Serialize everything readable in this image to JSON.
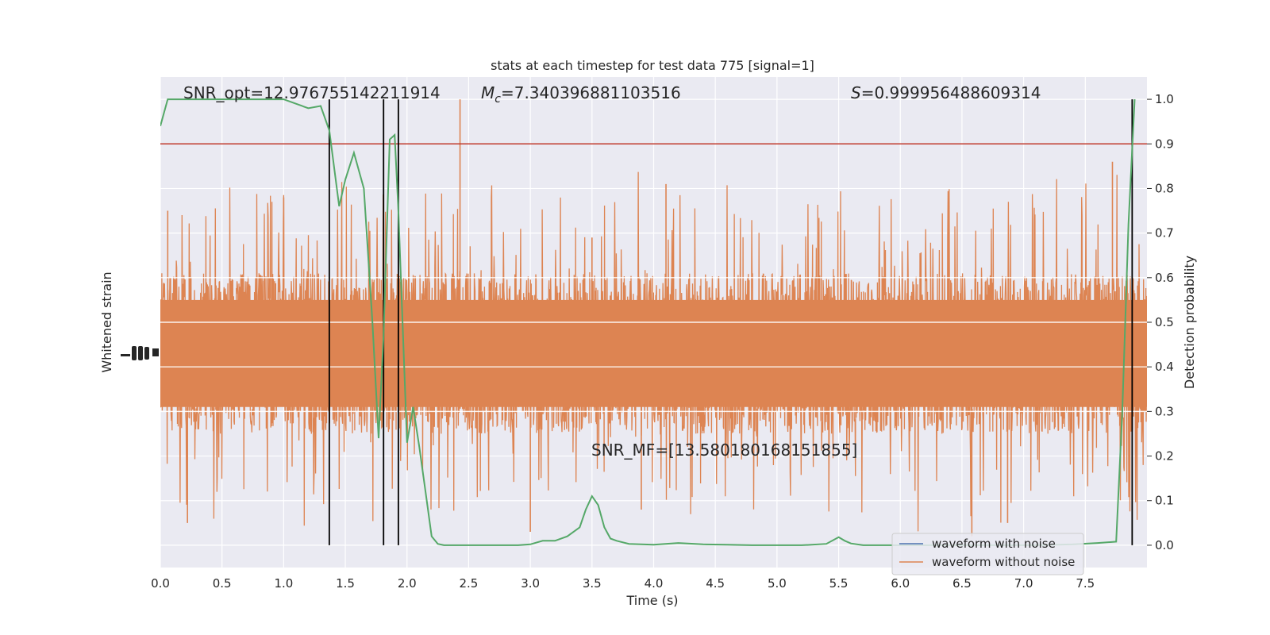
{
  "chart_data": {
    "type": "line",
    "title": "stats at each timestep for test data 775 [signal=1]",
    "xlabel": "Time (s)",
    "ylabel_left": "Whitened strain",
    "ylabel_right": "Detection probability",
    "xlim": [
      0.0,
      8.0
    ],
    "ylim_right": [
      -0.05,
      1.05
    ],
    "x_ticks": [
      "0.0",
      "0.5",
      "1.0",
      "1.5",
      "2.0",
      "2.5",
      "3.0",
      "3.5",
      "4.0",
      "4.5",
      "5.0",
      "5.5",
      "6.0",
      "6.5",
      "7.0",
      "7.5"
    ],
    "y_right_ticks": [
      "0.0",
      "0.1",
      "0.2",
      "0.3",
      "0.4",
      "0.5",
      "0.6",
      "0.7",
      "0.8",
      "0.9",
      "1.0"
    ],
    "grid": true,
    "legend_placement": "lower-right",
    "annotations": {
      "snr_opt": "SNR_opt=12.976755142211914",
      "mc_symbol": "M",
      "mc_sub": "c",
      "mc_value": "=7.340396881103516",
      "s_symbol": "S",
      "s_value": "=0.999956488609314",
      "snr_mf": "SNR_MF=[13.580180168151855]"
    },
    "threshold": {
      "value": 0.9,
      "color": "#c0392b"
    },
    "vertical_lines_x": [
      1.37,
      1.81,
      1.93,
      7.88
    ],
    "series": [
      {
        "name": "waveform with noise",
        "color": "#4c72b0",
        "kind": "strain",
        "values": []
      },
      {
        "name": "waveform without noise",
        "color": "#dd8452",
        "kind": "strain",
        "band_center": 0.43,
        "band_core_halfwidth": 0.12,
        "spike_highs": [
          [
            0.06,
            0.75
          ],
          [
            1.0,
            0.78
          ],
          [
            2.43,
            1.0
          ],
          [
            4.1,
            0.81
          ],
          [
            7.72,
            0.86
          ],
          [
            3.5,
            0.69
          ]
        ],
        "spike_lows": [
          [
            0.22,
            0.05
          ],
          [
            3.0,
            0.03
          ],
          [
            6.58,
            0.02
          ],
          [
            6.87,
            0.05
          ],
          [
            3.9,
            0.08
          ]
        ]
      },
      {
        "name": "",
        "color": "#55a868",
        "kind": "probability",
        "x": [
          0.0,
          0.06,
          0.3,
          0.6,
          0.9,
          1.0,
          1.1,
          1.2,
          1.3,
          1.37,
          1.45,
          1.5,
          1.57,
          1.65,
          1.72,
          1.77,
          1.81,
          1.86,
          1.9,
          1.93,
          2.0,
          2.05,
          2.1,
          2.15,
          2.2,
          2.25,
          2.3,
          2.5,
          2.7,
          2.9,
          3.0,
          3.1,
          3.2,
          3.3,
          3.4,
          3.45,
          3.5,
          3.55,
          3.6,
          3.65,
          3.7,
          3.8,
          4.0,
          4.2,
          4.4,
          4.6,
          4.8,
          5.0,
          5.2,
          5.4,
          5.5,
          5.55,
          5.6,
          5.7,
          5.9,
          6.2,
          6.5,
          6.8,
          7.1,
          7.4,
          7.6,
          7.75,
          7.8,
          7.85,
          7.9
        ],
        "y": [
          0.94,
          1.0,
          1.0,
          1.0,
          1.0,
          1.0,
          0.99,
          0.98,
          0.985,
          0.93,
          0.76,
          0.82,
          0.88,
          0.8,
          0.5,
          0.24,
          0.47,
          0.91,
          0.92,
          0.75,
          0.23,
          0.31,
          0.22,
          0.12,
          0.02,
          0.003,
          0.0,
          0.0,
          0.0,
          0.0,
          0.002,
          0.01,
          0.01,
          0.02,
          0.04,
          0.08,
          0.11,
          0.09,
          0.04,
          0.015,
          0.01,
          0.003,
          0.001,
          0.005,
          0.002,
          0.001,
          0.0,
          0.0,
          0.0,
          0.003,
          0.018,
          0.01,
          0.004,
          0.0,
          0.0,
          0.0,
          0.0,
          0.0,
          0.0,
          0.002,
          0.005,
          0.008,
          0.3,
          0.72,
          1.0
        ]
      }
    ]
  }
}
